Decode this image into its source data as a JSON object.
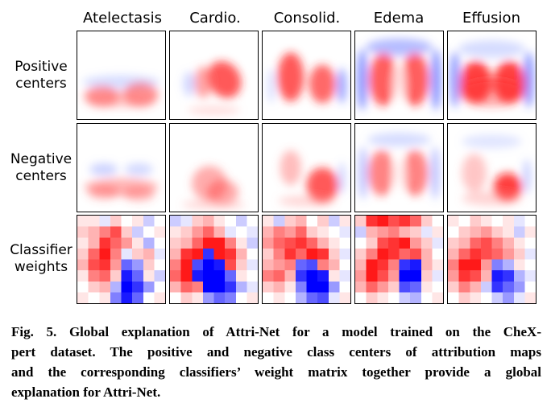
{
  "figure": {
    "columns": [
      "Atelectasis",
      "Cardio.",
      "Consolid.",
      "Edema",
      "Effusion"
    ],
    "rows": [
      {
        "line1": "Positive",
        "line2": "centers"
      },
      {
        "line1": "Negative",
        "line2": "centers"
      },
      {
        "line1": "Classifier",
        "line2": "weights"
      }
    ]
  },
  "caption": {
    "lines": [
      "Fig. 5. Global explanation of Attri-Net for a model trained on the CheX-",
      "pert dataset. The positive and negative class centers of attribution maps",
      "and the corresponding classifiers’ weight matrix together provide a global",
      "explanation for Attri-Net."
    ]
  },
  "colors": {
    "positive": "#e60000",
    "negative": "#0000e6",
    "neutral": "#ffffff"
  },
  "weights": [
    [
      [
        0.1,
        0.1,
        -0.1,
        0.2,
        0.0,
        0.1,
        -0.2,
        0.0
      ],
      [
        0.2,
        0.3,
        0.5,
        0.7,
        0.2,
        -0.2,
        0.0,
        0.1
      ],
      [
        0.1,
        0.3,
        0.8,
        0.6,
        0.4,
        0.1,
        -0.3,
        0.0
      ],
      [
        0.2,
        0.6,
        0.9,
        0.5,
        -0.1,
        0.2,
        0.3,
        -0.1
      ],
      [
        0.3,
        0.7,
        0.8,
        0.4,
        -0.6,
        -0.4,
        0.2,
        0.0
      ],
      [
        0.1,
        0.5,
        0.6,
        0.2,
        -0.9,
        -0.6,
        0.1,
        -0.2
      ],
      [
        0.0,
        0.2,
        0.3,
        -0.3,
        -1.0,
        -0.8,
        -0.4,
        0.0
      ],
      [
        0.1,
        0.0,
        0.1,
        -0.5,
        -0.9,
        -0.6,
        0.0,
        0.1
      ]
    ],
    [
      [
        -0.2,
        -0.1,
        0.2,
        0.3,
        0.1,
        0.0,
        -0.2,
        0.0
      ],
      [
        0.1,
        0.2,
        0.4,
        0.6,
        0.3,
        -0.1,
        0.0,
        -0.1
      ],
      [
        0.2,
        0.3,
        0.6,
        0.9,
        0.9,
        0.5,
        0.1,
        -0.2
      ],
      [
        0.3,
        0.8,
        0.9,
        -0.8,
        0.9,
        0.8,
        0.3,
        0.0
      ],
      [
        0.5,
        0.9,
        -0.7,
        -1.0,
        -0.9,
        0.7,
        0.2,
        -0.1
      ],
      [
        0.6,
        0.9,
        -0.9,
        -1.0,
        -1.0,
        -0.6,
        0.1,
        0.0
      ],
      [
        0.3,
        0.6,
        0.5,
        -1.0,
        -1.0,
        -0.8,
        -0.3,
        -0.1
      ],
      [
        0.0,
        0.2,
        0.1,
        -0.4,
        -0.6,
        -0.5,
        0.0,
        0.1
      ]
    ],
    [
      [
        0.1,
        -0.2,
        0.2,
        0.3,
        0.0,
        0.2,
        -0.2,
        0.1
      ],
      [
        0.3,
        0.5,
        0.4,
        0.6,
        0.2,
        0.1,
        0.0,
        -0.1
      ],
      [
        0.4,
        0.6,
        0.7,
        0.8,
        0.6,
        0.3,
        0.1,
        0.0
      ],
      [
        0.2,
        0.5,
        0.8,
        0.6,
        0.9,
        0.8,
        0.2,
        -0.1
      ],
      [
        0.3,
        0.4,
        0.5,
        -0.6,
        -0.7,
        0.5,
        0.3,
        0.0
      ],
      [
        0.5,
        0.6,
        0.3,
        -0.8,
        -1.0,
        -0.9,
        0.1,
        -0.1
      ],
      [
        0.2,
        0.3,
        0.1,
        -0.5,
        -1.0,
        -1.0,
        -0.4,
        0.0
      ],
      [
        0.0,
        0.1,
        0.0,
        -0.3,
        -0.6,
        -0.7,
        -0.1,
        0.1
      ]
    ],
    [
      [
        0.2,
        0.8,
        0.9,
        0.7,
        0.8,
        0.6,
        0.2,
        0.0
      ],
      [
        -0.2,
        0.3,
        0.4,
        0.5,
        0.3,
        0.2,
        -0.1,
        0.1
      ],
      [
        0.0,
        0.2,
        0.7,
        0.8,
        0.9,
        0.4,
        0.2,
        -0.1
      ],
      [
        0.2,
        0.5,
        0.9,
        0.8,
        0.6,
        0.7,
        0.3,
        0.0
      ],
      [
        0.3,
        0.9,
        0.8,
        0.5,
        -0.8,
        -0.9,
        0.3,
        0.1
      ],
      [
        0.4,
        0.9,
        0.7,
        0.4,
        -1.0,
        -1.0,
        0.2,
        -0.1
      ],
      [
        0.3,
        0.6,
        0.4,
        0.2,
        -0.7,
        -0.6,
        0.1,
        0.0
      ],
      [
        0.0,
        0.2,
        0.1,
        0.0,
        -0.2,
        -0.3,
        0.0,
        0.1
      ]
    ],
    [
      [
        0.1,
        0.0,
        0.2,
        0.1,
        0.0,
        0.1,
        -0.1,
        0.0
      ],
      [
        0.0,
        0.2,
        0.3,
        0.4,
        0.2,
        0.1,
        -0.2,
        0.1
      ],
      [
        0.2,
        0.3,
        0.6,
        0.7,
        0.5,
        0.3,
        0.1,
        0.0
      ],
      [
        0.3,
        0.6,
        0.8,
        0.7,
        0.6,
        0.4,
        0.2,
        -0.1
      ],
      [
        0.5,
        0.9,
        0.9,
        0.4,
        -0.5,
        -0.3,
        0.1,
        0.0
      ],
      [
        0.4,
        0.8,
        0.7,
        0.3,
        -0.9,
        -0.8,
        -0.3,
        -0.1
      ],
      [
        0.2,
        0.5,
        0.3,
        -0.2,
        -0.8,
        -0.6,
        -0.4,
        0.0
      ],
      [
        0.0,
        0.2,
        0.1,
        0.0,
        -0.2,
        -0.4,
        -0.1,
        0.1
      ]
    ]
  ]
}
